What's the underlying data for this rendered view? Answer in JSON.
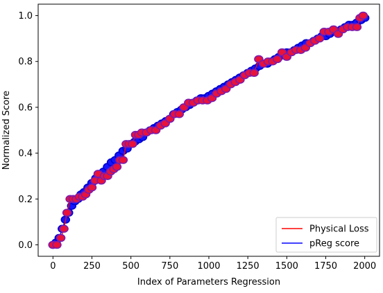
{
  "chart_data": {
    "type": "scatter",
    "title": "",
    "xlabel": "Index of Parameters Regression",
    "ylabel": "Normalized Score",
    "xlim": [
      -95,
      2095
    ],
    "ylim": [
      -0.05,
      1.05
    ],
    "xticks": [
      0,
      250,
      500,
      750,
      1000,
      1250,
      1500,
      1750,
      2000
    ],
    "yticks": [
      0.0,
      0.2,
      0.4,
      0.6,
      0.8,
      1.0
    ],
    "xtick_labels": [
      "0",
      "250",
      "500",
      "750",
      "1000",
      "1250",
      "1500",
      "1750",
      "2000"
    ],
    "ytick_labels": [
      "0.0",
      "0.2",
      "0.4",
      "0.6",
      "0.8",
      "1.0"
    ],
    "grid": false,
    "legend_position": "bottom-right",
    "series": [
      {
        "name": "Physical Loss",
        "color": "#ff0000",
        "x": [
          0,
          25,
          50,
          70,
          90,
          110,
          130,
          150,
          170,
          190,
          210,
          230,
          250,
          270,
          290,
          310,
          330,
          350,
          370,
          390,
          410,
          430,
          450,
          470,
          490,
          510,
          530,
          550,
          570,
          600,
          630,
          660,
          690,
          720,
          750,
          780,
          810,
          840,
          870,
          900,
          930,
          960,
          990,
          1020,
          1050,
          1080,
          1110,
          1140,
          1170,
          1200,
          1230,
          1260,
          1290,
          1320,
          1350,
          1380,
          1410,
          1440,
          1470,
          1500,
          1530,
          1560,
          1590,
          1620,
          1650,
          1680,
          1710,
          1740,
          1770,
          1800,
          1830,
          1860,
          1890,
          1920,
          1950,
          1970,
          1990
        ],
        "y": [
          0.0,
          0.0,
          0.03,
          0.07,
          0.14,
          0.2,
          0.2,
          0.2,
          0.21,
          0.21,
          0.22,
          0.24,
          0.25,
          0.28,
          0.31,
          0.28,
          0.3,
          0.3,
          0.32,
          0.33,
          0.34,
          0.37,
          0.37,
          0.44,
          0.44,
          0.44,
          0.48,
          0.48,
          0.49,
          0.49,
          0.5,
          0.5,
          0.52,
          0.53,
          0.55,
          0.57,
          0.57,
          0.6,
          0.62,
          0.62,
          0.63,
          0.63,
          0.63,
          0.64,
          0.66,
          0.67,
          0.68,
          0.7,
          0.71,
          0.72,
          0.74,
          0.75,
          0.75,
          0.81,
          0.79,
          0.8,
          0.8,
          0.81,
          0.84,
          0.82,
          0.84,
          0.85,
          0.85,
          0.86,
          0.88,
          0.89,
          0.9,
          0.93,
          0.93,
          0.94,
          0.92,
          0.94,
          0.95,
          0.95,
          0.95,
          0.99,
          1.0
        ]
      },
      {
        "name": "pReg score",
        "color": "#0000ff",
        "x": [
          0,
          20,
          40,
          60,
          80,
          100,
          120,
          140,
          160,
          180,
          200,
          225,
          250,
          275,
          300,
          325,
          350,
          375,
          400,
          425,
          450,
          475,
          500,
          525,
          550,
          575,
          600,
          625,
          650,
          675,
          700,
          725,
          750,
          775,
          800,
          825,
          850,
          875,
          900,
          925,
          950,
          975,
          1000,
          1025,
          1050,
          1075,
          1100,
          1125,
          1150,
          1175,
          1200,
          1225,
          1250,
          1275,
          1300,
          1325,
          1350,
          1375,
          1400,
          1425,
          1450,
          1475,
          1500,
          1525,
          1550,
          1575,
          1600,
          1625,
          1650,
          1675,
          1700,
          1725,
          1750,
          1775,
          1800,
          1825,
          1850,
          1875,
          1900,
          1925,
          1950,
          1975,
          2000
        ],
        "y": [
          0.0,
          0.01,
          0.03,
          0.07,
          0.11,
          0.14,
          0.17,
          0.19,
          0.2,
          0.22,
          0.23,
          0.25,
          0.27,
          0.29,
          0.3,
          0.32,
          0.34,
          0.36,
          0.37,
          0.39,
          0.41,
          0.42,
          0.44,
          0.45,
          0.46,
          0.47,
          0.49,
          0.5,
          0.51,
          0.52,
          0.53,
          0.54,
          0.55,
          0.57,
          0.58,
          0.59,
          0.6,
          0.61,
          0.62,
          0.63,
          0.64,
          0.64,
          0.65,
          0.66,
          0.67,
          0.68,
          0.69,
          0.7,
          0.71,
          0.72,
          0.73,
          0.74,
          0.75,
          0.76,
          0.77,
          0.78,
          0.79,
          0.79,
          0.8,
          0.81,
          0.82,
          0.83,
          0.84,
          0.84,
          0.85,
          0.86,
          0.87,
          0.88,
          0.88,
          0.89,
          0.9,
          0.91,
          0.91,
          0.92,
          0.93,
          0.93,
          0.94,
          0.95,
          0.96,
          0.96,
          0.97,
          0.98,
          0.99
        ]
      }
    ]
  }
}
